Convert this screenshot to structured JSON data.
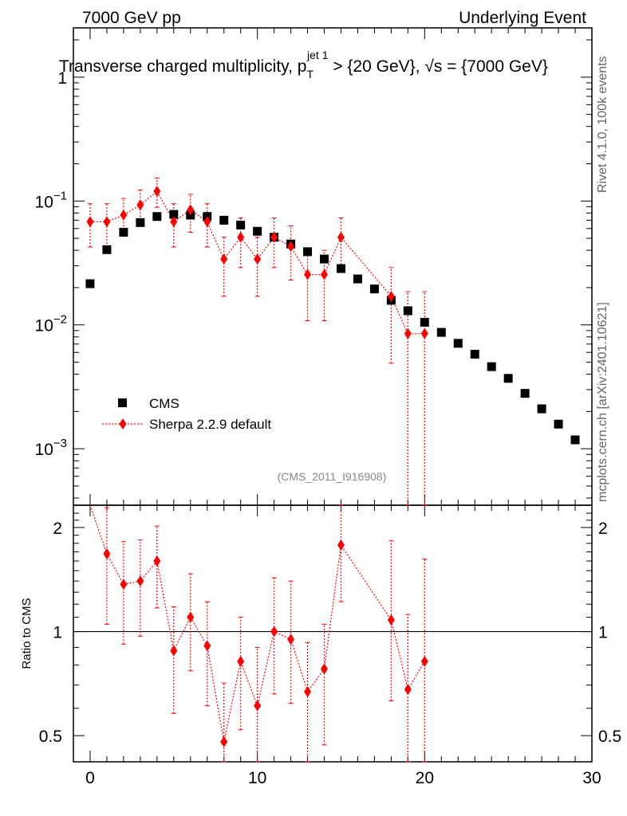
{
  "header": {
    "left": "7000 GeV pp",
    "right": "Underlying Event"
  },
  "side_labels": {
    "rivet": "Rivet 4.1.0,  100k events",
    "mcplots": "mcplots.cern.ch [arXiv:2401.10621]"
  },
  "colors": {
    "cms": "#000000",
    "mc": "#ff0000"
  },
  "chart_data": [
    {
      "type": "scatter",
      "panel": "main",
      "title": "Transverse charged multiplicity, p",
      "title_sub": "T",
      "title_sup": "jet 1",
      "title_rest": " > {20 GeV}, √s = {7000 GeV}",
      "analysis_tag": "(CMS_2011_I916908)",
      "yscale": "log",
      "ylim": [
        0.00035,
        2.5
      ],
      "xlim": [
        -1,
        30
      ],
      "ytick_labels": [
        {
          "value": 1,
          "mantissa": "1",
          "exp": ""
        },
        {
          "value": 0.1,
          "mantissa": "10",
          "exp": "−1"
        },
        {
          "value": 0.01,
          "mantissa": "10",
          "exp": "−2"
        },
        {
          "value": 0.001,
          "mantissa": "10",
          "exp": "−3"
        }
      ],
      "legend": {
        "position": "lower-left",
        "entries": [
          "CMS",
          "Sherpa 2.2.9 default"
        ]
      },
      "series": [
        {
          "name": "CMS",
          "marker": "square",
          "x": [
            0,
            1,
            2,
            3,
            4,
            5,
            6,
            7,
            8,
            9,
            10,
            11,
            12,
            13,
            14,
            15,
            16,
            17,
            18,
            19,
            20,
            21,
            22,
            23,
            24,
            25,
            26,
            27,
            28,
            29
          ],
          "y": [
            0.0215,
            0.0405,
            0.056,
            0.067,
            0.075,
            0.078,
            0.077,
            0.075,
            0.07,
            0.064,
            0.057,
            0.051,
            0.045,
            0.039,
            0.034,
            0.0285,
            0.0235,
            0.0195,
            0.0158,
            0.013,
            0.0105,
            0.0087,
            0.0071,
            0.0058,
            0.0046,
            0.0037,
            0.0028,
            0.0021,
            0.00158,
            0.00118
          ]
        },
        {
          "name": "Sherpa 2.2.9 default",
          "marker": "diamond",
          "x": [
            0,
            1,
            2,
            3,
            4,
            5,
            6,
            7,
            8,
            9,
            10,
            11,
            12,
            13,
            14,
            15,
            18,
            19,
            20
          ],
          "y": [
            0.068,
            0.068,
            0.077,
            0.093,
            0.12,
            0.068,
            0.085,
            0.068,
            0.034,
            0.051,
            0.034,
            0.051,
            0.043,
            0.0255,
            0.0255,
            0.051,
            0.017,
            0.0085,
            0.0085
          ],
          "yerr_low": [
            0.0425,
            0.0425,
            0.052,
            0.066,
            0.089,
            0.0425,
            0.056,
            0.0425,
            0.017,
            0.029,
            0.017,
            0.029,
            0.023,
            0.0108,
            0.0108,
            0.029,
            0.0049,
            0.0001,
            0.0001
          ],
          "yerr_high": [
            0.095,
            0.095,
            0.105,
            0.123,
            0.153,
            0.095,
            0.113,
            0.095,
            0.051,
            0.073,
            0.051,
            0.073,
            0.063,
            0.04,
            0.04,
            0.073,
            0.029,
            0.0185,
            0.0185
          ]
        }
      ]
    },
    {
      "type": "scatter",
      "panel": "ratio",
      "ylabel": "Ratio to CMS",
      "yscale": "log",
      "ylim": [
        0.42,
        2.32
      ],
      "xlim": [
        -1,
        30
      ],
      "reference_line": 1,
      "ytick_labels": [
        {
          "value": 0.5,
          "label": "0.5"
        },
        {
          "value": 1,
          "label": "1"
        },
        {
          "value": 2,
          "label": "2"
        }
      ],
      "xtick_labels": [
        {
          "value": 0,
          "label": "0"
        },
        {
          "value": 10,
          "label": "10"
        },
        {
          "value": 20,
          "label": "20"
        },
        {
          "value": 30,
          "label": "30"
        }
      ],
      "series": [
        {
          "name": "Sherpa 2.2.9 default / CMS",
          "marker": "diamond",
          "x": [
            1,
            2,
            3,
            4,
            5,
            6,
            7,
            8,
            9,
            10,
            11,
            12,
            13,
            14,
            15,
            18,
            19,
            20
          ],
          "y": [
            1.68,
            1.37,
            1.4,
            1.6,
            0.88,
            1.1,
            0.91,
            0.48,
            0.82,
            0.61,
            1.0,
            0.95,
            0.67,
            0.78,
            1.78,
            1.08,
            0.68,
            0.82
          ],
          "yerr_low": [
            1.05,
            0.92,
            0.97,
            1.17,
            0.58,
            0.77,
            0.61,
            0.3,
            0.52,
            0.38,
            0.66,
            0.62,
            0.4,
            0.47,
            1.22,
            0.63,
            0.3,
            0.4
          ],
          "yerr_high": [
            2.28,
            1.82,
            1.84,
            2.02,
            1.18,
            1.47,
            1.22,
            0.71,
            1.1,
            0.9,
            1.43,
            1.4,
            0.93,
            1.05,
            2.4,
            1.83,
            1.12,
            1.62
          ]
        }
      ]
    }
  ]
}
